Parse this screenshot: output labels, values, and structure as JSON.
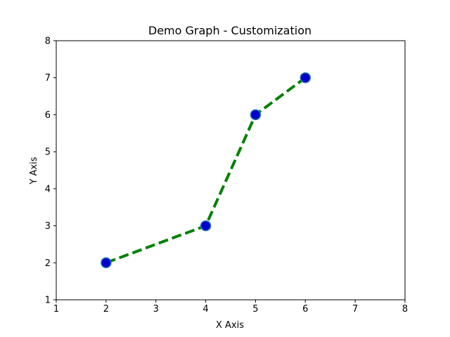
{
  "chart_data": {
    "type": "line",
    "title": "Demo Graph - Customization",
    "xlabel": "X Axis",
    "ylabel": "Y Axis",
    "xlim": [
      1,
      8
    ],
    "ylim": [
      1,
      8
    ],
    "xticks": [
      1,
      2,
      3,
      4,
      5,
      6,
      7,
      8
    ],
    "yticks": [
      1,
      2,
      3,
      4,
      5,
      6,
      7,
      8
    ],
    "grid": false,
    "series": [
      {
        "x": [
          2,
          4,
          5,
          6
        ],
        "y": [
          2,
          3,
          6,
          7
        ],
        "line_color": "#008000",
        "line_style": "dashed",
        "marker": "circle",
        "marker_face_color": "#0000cd",
        "marker_edge_color": "#1f77b4"
      }
    ]
  }
}
